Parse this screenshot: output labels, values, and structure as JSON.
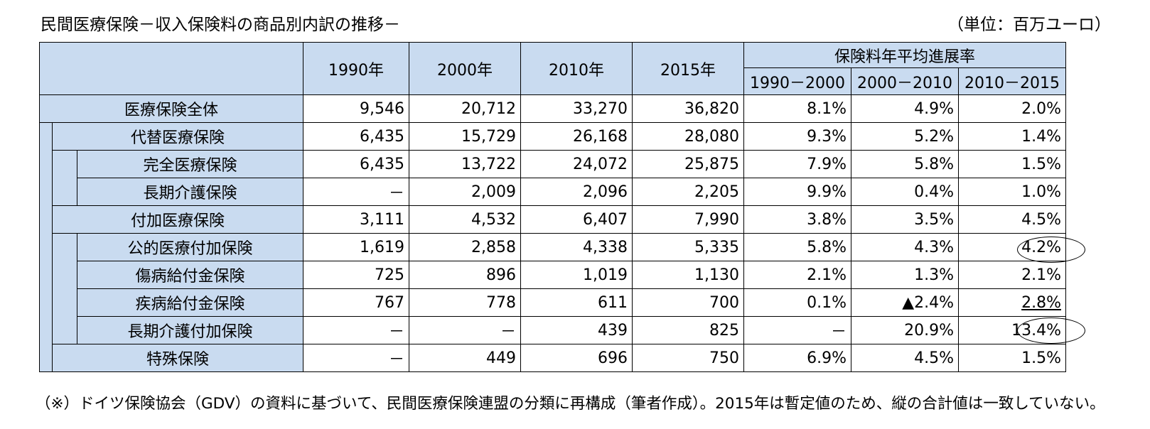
{
  "title": "民間医療保険－収入保険料の商品別内訳の推移－",
  "unit": "（単位：百万ユーロ）",
  "table": {
    "year_headers": [
      "1990年",
      "2000年",
      "2010年",
      "2015年"
    ],
    "growth_header": "保険料年平均進展率",
    "growth_periods": [
      "1990－2000",
      "2000－2010",
      "2010－2015"
    ],
    "rows": [
      {
        "label": "医療保険全体",
        "values": [
          "9,546",
          "20,712",
          "33,270",
          "36,820"
        ],
        "growth": [
          "8.1%",
          "4.9%",
          "2.0%"
        ]
      },
      {
        "label": "代替医療保険",
        "values": [
          "6,435",
          "15,729",
          "26,168",
          "28,080"
        ],
        "growth": [
          "9.3%",
          "5.2%",
          "1.4%"
        ]
      },
      {
        "label": "完全医療保険",
        "values": [
          "6,435",
          "13,722",
          "24,072",
          "25,875"
        ],
        "growth": [
          "7.9%",
          "5.8%",
          "1.5%"
        ]
      },
      {
        "label": "長期介護保険",
        "values": [
          "－",
          "2,009",
          "2,096",
          "2,205"
        ],
        "growth": [
          "9.9%",
          "0.4%",
          "1.0%"
        ]
      },
      {
        "label": "付加医療保険",
        "values": [
          "3,111",
          "4,532",
          "6,407",
          "7,990"
        ],
        "growth": [
          "3.8%",
          "3.5%",
          "4.5%"
        ]
      },
      {
        "label": "公的医療付加保険",
        "values": [
          "1,619",
          "2,858",
          "4,338",
          "5,335"
        ],
        "growth": [
          "5.8%",
          "4.3%",
          "4.2%"
        ]
      },
      {
        "label": "傷病給付金保険",
        "values": [
          "725",
          "896",
          "1,019",
          "1,130"
        ],
        "growth": [
          "2.1%",
          "1.3%",
          "2.1%"
        ]
      },
      {
        "label": "疾病給付金保険",
        "values": [
          "767",
          "778",
          "611",
          "700"
        ],
        "growth": [
          "0.1%",
          "▲2.4%",
          "2.8%"
        ]
      },
      {
        "label": "長期介護付加保険",
        "values": [
          "－",
          "－",
          "439",
          "825"
        ],
        "growth": [
          "－",
          "20.9%",
          "13.4%"
        ]
      },
      {
        "label": "特殊保険",
        "values": [
          "－",
          "449",
          "696",
          "750"
        ],
        "growth": [
          "6.9%",
          "4.5%",
          "1.5%"
        ]
      }
    ]
  },
  "footnote": "（※）ドイツ保険協会（GDV）の資料に基づいて、民間医療保険連盟の分類に再構成（筆者作成）。2015年は暫定値のため、縦の合計値は一致していない。"
}
